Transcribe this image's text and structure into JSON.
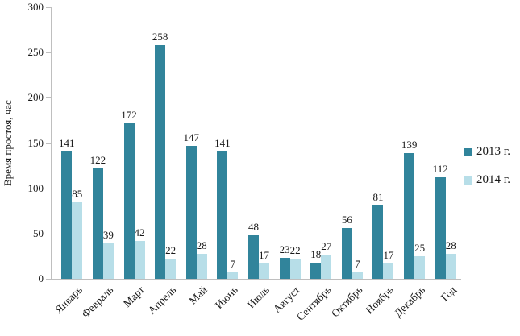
{
  "chart_data": {
    "type": "bar",
    "title": "",
    "ylabel": "Время простоя, час",
    "xlabel": "",
    "ylim": [
      0,
      300
    ],
    "yticks": [
      0,
      50,
      100,
      150,
      200,
      250,
      300
    ],
    "grid": false,
    "legend_position": "right",
    "value_labels": true,
    "categories": [
      "Январь",
      "Февраль",
      "Март",
      "Апрель",
      "Май",
      "Июнь",
      "Июль",
      "Август",
      "Сентябрь",
      "Октябрь",
      "Ноябрь",
      "Декабрь",
      "Год"
    ],
    "series": [
      {
        "name": "2013 г.",
        "color": "#31849B",
        "values": [
          141,
          122,
          172,
          258,
          147,
          141,
          48,
          23,
          18,
          56,
          81,
          139,
          112
        ]
      },
      {
        "name": "2014 г.",
        "color": "#B7DEE8",
        "values": [
          85,
          39,
          42,
          22,
          28,
          7,
          17,
          22,
          27,
          7,
          17,
          25,
          28
        ]
      }
    ]
  },
  "colors": {
    "axis": "#bfbfbf",
    "text": "#1a1a1a",
    "background": "#ffffff"
  }
}
